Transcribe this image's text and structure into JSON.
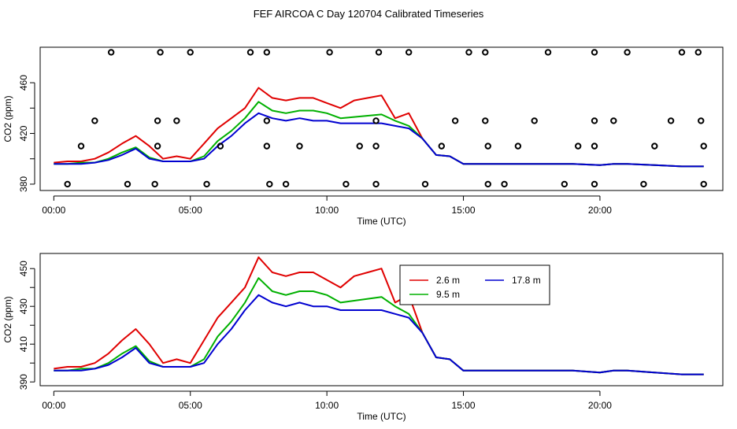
{
  "page_title": "FEF AIRCOA C  Day 120704  Calibrated Timeseries",
  "colors": {
    "s26": "#e00000",
    "s95": "#00b000",
    "s178": "#0000d0",
    "marker": "#000000"
  },
  "chart_data": [
    {
      "type": "line",
      "title": "",
      "xlabel": "Time (UTC)",
      "ylabel": "CO2 (ppm)",
      "xlim": [
        -0.5,
        24.5
      ],
      "ylim": [
        375,
        488
      ],
      "xticks": [
        0,
        5,
        10,
        15,
        20
      ],
      "xtick_labels": [
        "00:00",
        "05:00",
        "10:00",
        "15:00",
        "20:00"
      ],
      "yticks": [
        380,
        400,
        420,
        440,
        460
      ],
      "ytick_labels": [
        "380",
        "",
        "420",
        "",
        "460"
      ],
      "series_refs": [
        "s26",
        "s95",
        "s178"
      ],
      "markers": [
        {
          "x": 2.1,
          "y": 484
        },
        {
          "x": 3.9,
          "y": 484
        },
        {
          "x": 5.0,
          "y": 484
        },
        {
          "x": 7.2,
          "y": 484
        },
        {
          "x": 7.8,
          "y": 484
        },
        {
          "x": 10.1,
          "y": 484
        },
        {
          "x": 11.9,
          "y": 484
        },
        {
          "x": 13.0,
          "y": 484
        },
        {
          "x": 15.2,
          "y": 484
        },
        {
          "x": 15.8,
          "y": 484
        },
        {
          "x": 18.1,
          "y": 484
        },
        {
          "x": 19.8,
          "y": 484
        },
        {
          "x": 21.0,
          "y": 484
        },
        {
          "x": 23.0,
          "y": 484
        },
        {
          "x": 23.6,
          "y": 484
        },
        {
          "x": 1.5,
          "y": 430
        },
        {
          "x": 3.8,
          "y": 430
        },
        {
          "x": 4.5,
          "y": 430
        },
        {
          "x": 7.8,
          "y": 430
        },
        {
          "x": 11.8,
          "y": 430
        },
        {
          "x": 14.7,
          "y": 430
        },
        {
          "x": 15.8,
          "y": 430
        },
        {
          "x": 17.6,
          "y": 430
        },
        {
          "x": 19.8,
          "y": 430
        },
        {
          "x": 20.5,
          "y": 430
        },
        {
          "x": 22.6,
          "y": 430
        },
        {
          "x": 23.7,
          "y": 430
        },
        {
          "x": 1.0,
          "y": 410
        },
        {
          "x": 3.8,
          "y": 410
        },
        {
          "x": 6.1,
          "y": 410
        },
        {
          "x": 7.8,
          "y": 410
        },
        {
          "x": 9.0,
          "y": 410
        },
        {
          "x": 11.2,
          "y": 410
        },
        {
          "x": 11.8,
          "y": 410
        },
        {
          "x": 14.2,
          "y": 410
        },
        {
          "x": 15.9,
          "y": 410
        },
        {
          "x": 17.0,
          "y": 410
        },
        {
          "x": 19.2,
          "y": 410
        },
        {
          "x": 19.8,
          "y": 410
        },
        {
          "x": 22.0,
          "y": 410
        },
        {
          "x": 23.8,
          "y": 410
        },
        {
          "x": 0.5,
          "y": 380
        },
        {
          "x": 2.7,
          "y": 380
        },
        {
          "x": 3.7,
          "y": 380
        },
        {
          "x": 5.6,
          "y": 380
        },
        {
          "x": 7.9,
          "y": 380
        },
        {
          "x": 8.5,
          "y": 380
        },
        {
          "x": 10.7,
          "y": 380
        },
        {
          "x": 11.8,
          "y": 380
        },
        {
          "x": 13.6,
          "y": 380
        },
        {
          "x": 15.9,
          "y": 380
        },
        {
          "x": 16.5,
          "y": 380
        },
        {
          "x": 18.7,
          "y": 380
        },
        {
          "x": 19.8,
          "y": 380
        },
        {
          "x": 21.6,
          "y": 380
        },
        {
          "x": 23.8,
          "y": 380
        }
      ]
    },
    {
      "type": "line",
      "title": "",
      "xlabel": "Time (UTC)",
      "ylabel": "CO2 (ppm)",
      "xlim": [
        -0.5,
        24.5
      ],
      "ylim": [
        388,
        458
      ],
      "xticks": [
        0,
        5,
        10,
        15,
        20
      ],
      "xtick_labels": [
        "00:00",
        "05:00",
        "10:00",
        "15:00",
        "20:00"
      ],
      "yticks": [
        390,
        400,
        410,
        420,
        430,
        440,
        450
      ],
      "ytick_labels": [
        "390",
        "",
        "410",
        "",
        "430",
        "",
        "450"
      ],
      "series_refs": [
        "s26",
        "s95",
        "s178"
      ],
      "legend": {
        "position": "top-right",
        "entries": [
          "2.6 m",
          "9.5 m",
          "17.8 m"
        ]
      }
    }
  ],
  "series": {
    "s26": {
      "name": "2.6 m",
      "x": [
        0,
        0.5,
        1,
        1.5,
        2,
        2.5,
        3,
        3.5,
        4,
        4.5,
        5,
        5.5,
        6,
        6.5,
        7,
        7.5,
        8,
        8.5,
        9,
        9.5,
        10,
        10.5,
        11,
        11.5,
        12,
        12.5,
        13,
        13.5,
        14,
        14.5,
        15,
        15.5,
        16,
        17,
        18,
        19,
        20,
        20.5,
        21,
        22,
        23,
        23.8
      ],
      "y": [
        397,
        398,
        398,
        400,
        405,
        412,
        418,
        410,
        400,
        402,
        400,
        412,
        424,
        432,
        440,
        456,
        448,
        446,
        448,
        448,
        444,
        440,
        446,
        448,
        450,
        432,
        436,
        416,
        403,
        402,
        396,
        396,
        396,
        396,
        396,
        396,
        395,
        396,
        396,
        395,
        394,
        394
      ]
    },
    "s95": {
      "name": "9.5 m",
      "x": [
        0,
        0.5,
        1,
        1.5,
        2,
        2.5,
        3,
        3.5,
        4,
        4.5,
        5,
        5.5,
        6,
        6.5,
        7,
        7.5,
        8,
        8.5,
        9,
        9.5,
        10,
        10.5,
        11,
        11.5,
        12,
        12.5,
        13,
        13.5,
        14,
        14.5,
        15,
        15.5,
        16,
        17,
        18,
        19,
        20,
        20.5,
        21,
        22,
        23,
        23.8
      ],
      "y": [
        396,
        396,
        397,
        397,
        400,
        405,
        409,
        401,
        398,
        398,
        398,
        402,
        414,
        422,
        432,
        445,
        438,
        436,
        438,
        438,
        436,
        432,
        433,
        434,
        435,
        430,
        426,
        416,
        403,
        402,
        396,
        396,
        396,
        396,
        396,
        396,
        395,
        396,
        396,
        395,
        394,
        394
      ]
    },
    "s178": {
      "name": "17.8 m",
      "x": [
        0,
        0.5,
        1,
        1.5,
        2,
        2.5,
        3,
        3.5,
        4,
        4.5,
        5,
        5.5,
        6,
        6.5,
        7,
        7.5,
        8,
        8.5,
        9,
        9.5,
        10,
        10.5,
        11,
        11.5,
        12,
        12.5,
        13,
        13.5,
        14,
        14.5,
        15,
        15.5,
        16,
        17,
        18,
        19,
        20,
        20.5,
        21,
        22,
        23,
        23.8
      ],
      "y": [
        396,
        396,
        396,
        397,
        399,
        403,
        408,
        400,
        398,
        398,
        398,
        400,
        410,
        418,
        428,
        436,
        432,
        430,
        432,
        430,
        430,
        428,
        428,
        428,
        428,
        426,
        424,
        416,
        403,
        402,
        396,
        396,
        396,
        396,
        396,
        396,
        395,
        396,
        396,
        395,
        394,
        394
      ]
    }
  }
}
